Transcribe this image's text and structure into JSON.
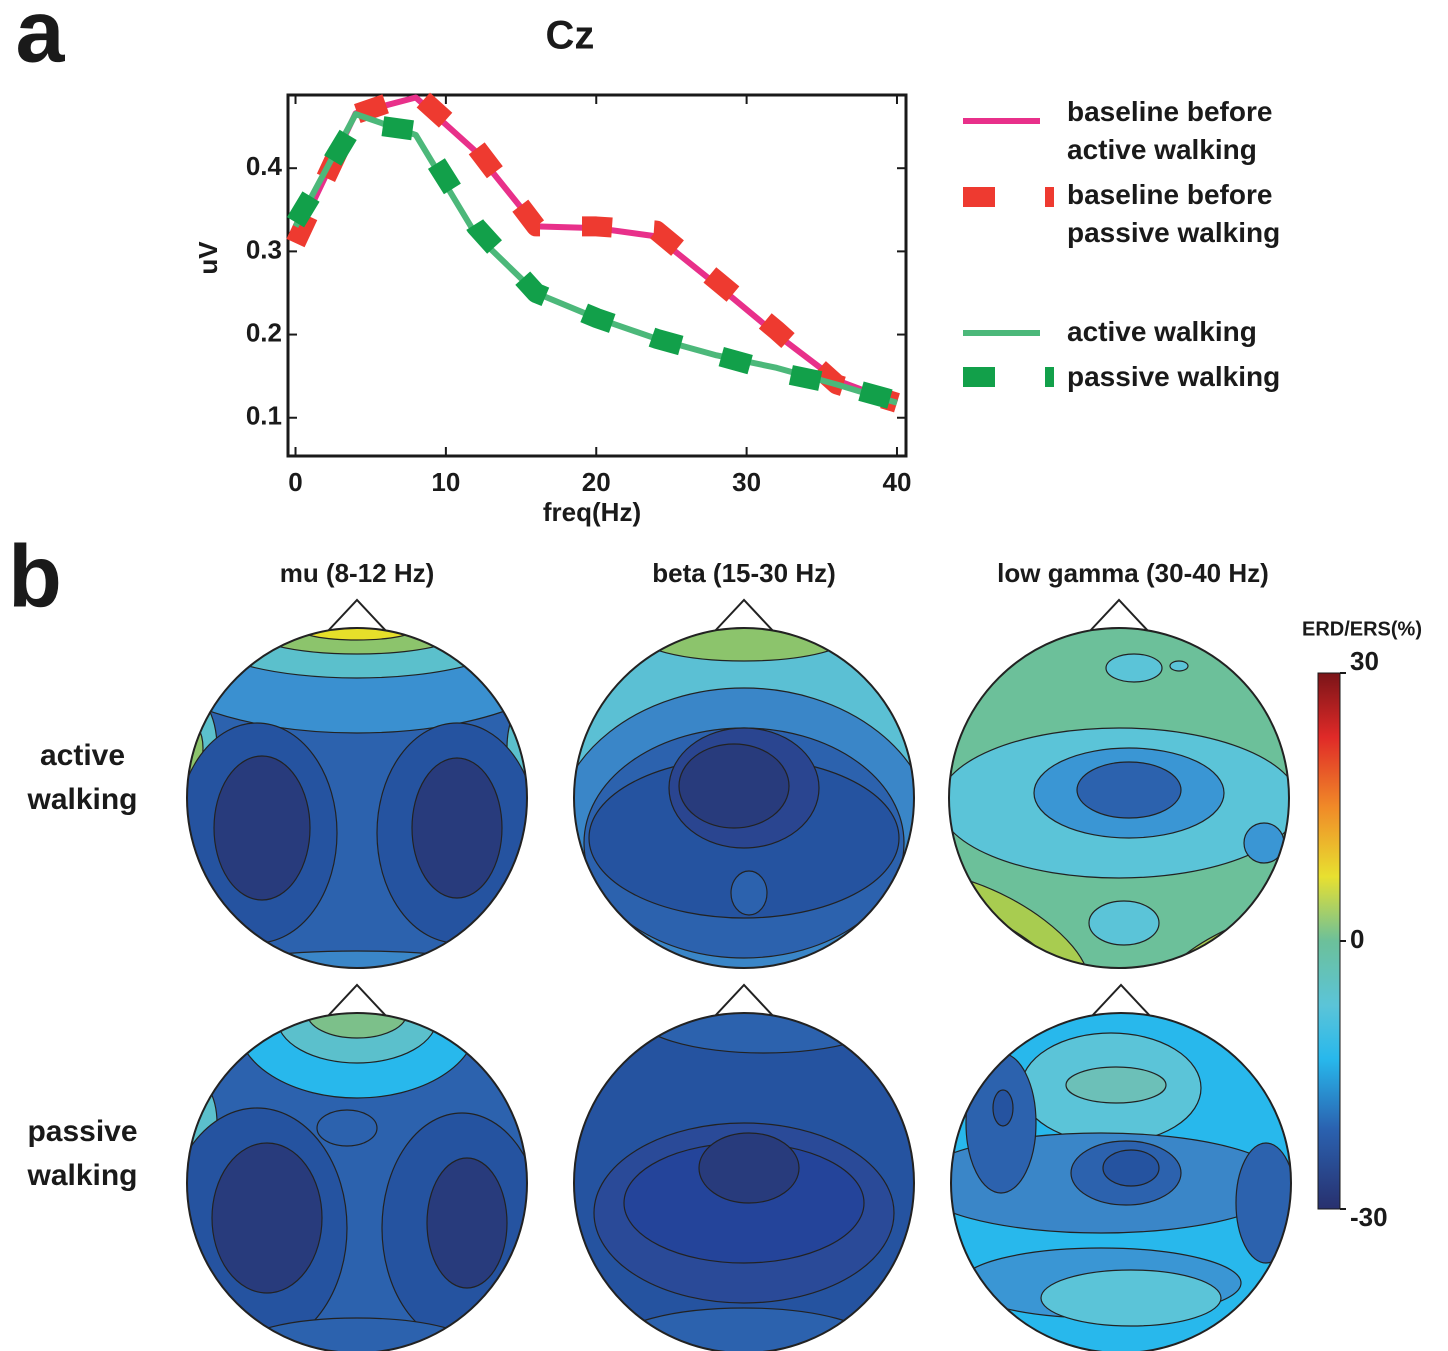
{
  "panel_labels": [
    "a",
    "b"
  ],
  "chart_data": {
    "type": "line",
    "title": "Cz",
    "xlabel": "freq(Hz)",
    "ylabel": "uV",
    "x": [
      0,
      4,
      8,
      12,
      16,
      20,
      24,
      28,
      32,
      36,
      40
    ],
    "xlim": [
      -0.5,
      40.6
    ],
    "ylim": [
      0.054,
      0.488
    ],
    "xticks": [
      0,
      10,
      20,
      30,
      40
    ],
    "yticks": [
      0.1,
      0.2,
      0.3,
      0.4
    ],
    "series": [
      {
        "name": "baseline before active walking",
        "color": "#e8308a",
        "style": "solid",
        "values": [
          0.315,
          0.466,
          0.485,
          0.42,
          0.33,
          0.328,
          0.318,
          0.26,
          0.2,
          0.145,
          0.118
        ]
      },
      {
        "name": "baseline before passive walking",
        "color": "#ee3a30",
        "style": "dashed",
        "values": [
          0.31,
          0.465,
          0.49,
          0.425,
          0.33,
          0.33,
          0.325,
          0.265,
          0.205,
          0.14,
          0.118
        ]
      },
      {
        "name": "active walking",
        "color": "#4cb87a",
        "style": "solid",
        "values": [
          0.33,
          0.465,
          0.44,
          0.32,
          0.25,
          0.22,
          0.195,
          0.175,
          0.16,
          0.14,
          0.118
        ]
      },
      {
        "name": "passive walking",
        "color": "#12a04a",
        "style": "dashed",
        "values": [
          0.335,
          0.455,
          0.445,
          0.33,
          0.25,
          0.22,
          0.195,
          0.175,
          0.155,
          0.14,
          0.12
        ]
      }
    ]
  },
  "topomaps": {
    "columns": [
      "mu (8-12 Hz)",
      "beta (15-30 Hz)",
      "low gamma (30-40 Hz)"
    ],
    "rows": [
      "active walking",
      "passive walking"
    ]
  },
  "colorbar": {
    "label": "ERD/ERS(%)",
    "lim": [
      -30,
      30
    ],
    "ticks": [
      30,
      0,
      -30
    ]
  }
}
